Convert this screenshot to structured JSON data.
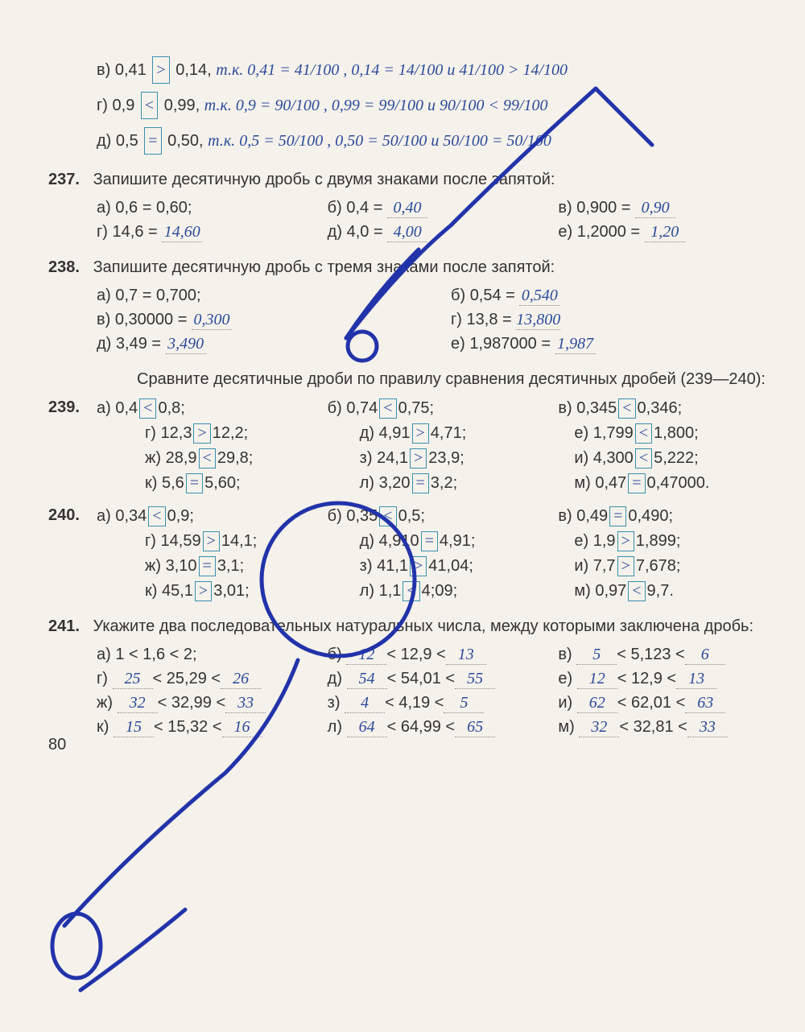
{
  "pageNumber": "80",
  "topLines": {
    "v": {
      "label": "в)",
      "printed": "0,41",
      "cmp": ">",
      "printed2": "0,14,",
      "hand": "т.к.  0,41 = 41/100 ,  0,14 = 14/100   и   41/100 > 14/100"
    },
    "g": {
      "label": "г)",
      "printed": "0,9",
      "cmp": "<",
      "printed2": "0,99,",
      "hand": "т.к.  0,9 = 90/100 ,  0,99 = 99/100   и   90/100 < 99/100"
    },
    "d": {
      "label": "д)",
      "printed": "0,5",
      "cmp": "=",
      "printed2": "0,50,",
      "hand": "т.к.  0,5 = 50/100 ,  0,50 = 50/100   и   50/100 = 50/100"
    }
  },
  "p237": {
    "num": "237.",
    "title": "Запишите десятичную дробь с двумя знаками после запятой:",
    "a": {
      "l": "а)",
      "t": "0,6 = 0,60;"
    },
    "b": {
      "l": "б)",
      "t": "0,4 =",
      "ans": "0,40"
    },
    "v": {
      "l": "в)",
      "t": "0,900 =",
      "ans": "0,90"
    },
    "g": {
      "l": "г)",
      "t": "14,6 =",
      "ans": "14,60"
    },
    "d": {
      "l": "д)",
      "t": "4,0 =",
      "ans": "4,00"
    },
    "e": {
      "l": "е)",
      "t": "1,2000 =",
      "ans": "1,20"
    }
  },
  "p238": {
    "num": "238.",
    "title": "Запишите десятичную дробь с тремя знаками после запятой:",
    "a": {
      "l": "а)",
      "t": "0,7 = 0,700;"
    },
    "b": {
      "l": "б)",
      "t": "0,54 =",
      "ans": "0,540"
    },
    "v": {
      "l": "в)",
      "t": "0,30000 =",
      "ans": "0,300"
    },
    "g": {
      "l": "г)",
      "t": "13,8 =",
      "ans": "13,800"
    },
    "d": {
      "l": "д)",
      "t": "3,49 =",
      "ans": "3,490"
    },
    "e": {
      "l": "е)",
      "t": "1,987000 =",
      "ans": "1,987"
    }
  },
  "compareTitle": "Сравните десятичные дроби по правилу сравнения десятичных дробей (239—240):",
  "p239": {
    "num": "239.",
    "rows": [
      [
        {
          "l": "а)",
          "a": "0,4",
          "c": "<",
          "b": "0,8;"
        },
        {
          "l": "б)",
          "a": "0,74",
          "c": "<",
          "b": "0,75;"
        },
        {
          "l": "в)",
          "a": "0,345",
          "c": "<",
          "b": "0,346;"
        }
      ],
      [
        {
          "l": "г)",
          "a": "12,3",
          "c": ">",
          "b": "12,2;"
        },
        {
          "l": "д)",
          "a": "4,91",
          "c": ">",
          "b": "4,71;"
        },
        {
          "l": "е)",
          "a": "1,799",
          "c": "<",
          "b": "1,800;"
        }
      ],
      [
        {
          "l": "ж)",
          "a": "28,9",
          "c": "<",
          "b": "29,8;"
        },
        {
          "l": "з)",
          "a": "24,1",
          "c": ">",
          "b": "23,9;"
        },
        {
          "l": "и)",
          "a": "4,300",
          "c": "<",
          "b": "5,222;"
        }
      ],
      [
        {
          "l": "к)",
          "a": "5,6",
          "c": "=",
          "b": "5,60;"
        },
        {
          "l": "л)",
          "a": "3,20",
          "c": "=",
          "b": "3,2;"
        },
        {
          "l": "м)",
          "a": "0,47",
          "c": "=",
          "b": "0,47000."
        }
      ]
    ]
  },
  "p240": {
    "num": "240.",
    "rows": [
      [
        {
          "l": "а)",
          "a": "0,34",
          "c": "<",
          "b": "0,9;"
        },
        {
          "l": "б)",
          "a": "0,35",
          "c": "<",
          "b": "0,5;"
        },
        {
          "l": "в)",
          "a": "0,49",
          "c": "=",
          "b": "0,490;"
        }
      ],
      [
        {
          "l": "г)",
          "a": "14,59",
          "c": ">",
          "b": "14,1;"
        },
        {
          "l": "д)",
          "a": "4,910",
          "c": "=",
          "b": "4,91;"
        },
        {
          "l": "е)",
          "a": "1,9",
          "c": ">",
          "b": "1,899;"
        }
      ],
      [
        {
          "l": "ж)",
          "a": "3,10",
          "c": "=",
          "b": "3,1;"
        },
        {
          "l": "з)",
          "a": "41,1",
          "c": ">",
          "b": "41,04;"
        },
        {
          "l": "и)",
          "a": "7,7",
          "c": ">",
          "b": "7,678;"
        }
      ],
      [
        {
          "l": "к)",
          "a": "45,1",
          "c": ">",
          "b": "3,01;"
        },
        {
          "l": "л)",
          "a": "1,1",
          "c": "<",
          "b": "4;09;"
        },
        {
          "l": "м)",
          "a": "0,97",
          "c": "<",
          "b": "9,7."
        }
      ]
    ]
  },
  "p241": {
    "num": "241.",
    "title": "Укажите два последовательных натуральных числа, между которыми заключена дробь:",
    "rows": [
      [
        {
          "l": "а)",
          "t": "1 < 1,6 < 2;"
        },
        {
          "l": "б)",
          "a": "12",
          "m": "< 12,9 <",
          "b": "13"
        },
        {
          "l": "в)",
          "a": "5",
          "m": "< 5,123 <",
          "b": "6"
        }
      ],
      [
        {
          "l": "г)",
          "a": "25",
          "m": "< 25,29 <",
          "b": "26"
        },
        {
          "l": "д)",
          "a": "54",
          "m": "< 54,01 <",
          "b": "55"
        },
        {
          "l": "е)",
          "a": "12",
          "m": "< 12,9 <",
          "b": "13"
        }
      ],
      [
        {
          "l": "ж)",
          "a": "32",
          "m": "< 32,99 <",
          "b": "33"
        },
        {
          "l": "з)",
          "a": "4",
          "m": "< 4,19 <",
          "b": "5"
        },
        {
          "l": "и)",
          "a": "62",
          "m": "< 62,01 <",
          "b": "63"
        }
      ],
      [
        {
          "l": "к)",
          "a": "15",
          "m": "< 15,32 <",
          "b": "16"
        },
        {
          "l": "л)",
          "a": "64",
          "m": "< 64,99 <",
          "b": "65"
        },
        {
          "l": "м)",
          "a": "32",
          "m2": "< 32,81 <",
          "b": "33"
        }
      ]
    ]
  },
  "colors": {
    "hand": "#2a4a9a",
    "box": "#3a8fae",
    "overlay": "#2233aa"
  }
}
